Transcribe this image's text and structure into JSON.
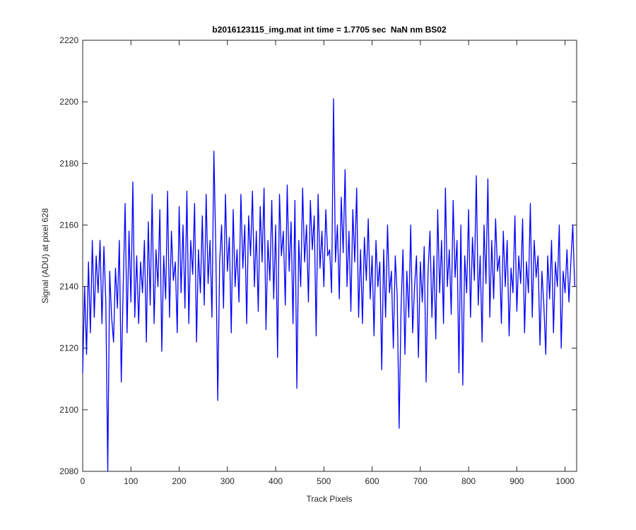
{
  "chart_data": {
    "type": "line",
    "title": "b2016123115_img.mat int time = 1.7705 sec  NaN nm BS02",
    "x_label": "Track Pixels",
    "y_label": "Signal (ADU) at pixel 628",
    "color": "#0000ff",
    "xlim": [
      0,
      1024
    ],
    "ylim": [
      2080,
      2220
    ],
    "xticks": [
      0,
      100,
      200,
      300,
      400,
      500,
      600,
      700,
      800,
      900,
      1000
    ],
    "yticks": [
      2080,
      2100,
      2120,
      2140,
      2160,
      2180,
      2200,
      2220
    ],
    "grid": false,
    "x": [
      0,
      4,
      8,
      12,
      16,
      20,
      24,
      28,
      32,
      36,
      40,
      44,
      48,
      52,
      56,
      60,
      64,
      68,
      72,
      76,
      80,
      84,
      88,
      92,
      96,
      100,
      104,
      108,
      112,
      116,
      120,
      124,
      128,
      132,
      136,
      140,
      144,
      148,
      152,
      156,
      160,
      164,
      168,
      172,
      176,
      180,
      184,
      188,
      192,
      196,
      200,
      204,
      208,
      212,
      216,
      220,
      224,
      228,
      232,
      236,
      240,
      244,
      248,
      252,
      256,
      260,
      264,
      268,
      272,
      276,
      280,
      284,
      288,
      292,
      296,
      300,
      304,
      308,
      312,
      316,
      320,
      324,
      328,
      332,
      336,
      340,
      344,
      348,
      352,
      356,
      360,
      364,
      368,
      372,
      376,
      380,
      384,
      388,
      392,
      396,
      400,
      404,
      408,
      412,
      416,
      420,
      424,
      428,
      432,
      436,
      440,
      444,
      448,
      452,
      456,
      460,
      464,
      468,
      472,
      476,
      480,
      484,
      488,
      492,
      496,
      500,
      504,
      508,
      512,
      516,
      520,
      524,
      528,
      532,
      536,
      540,
      544,
      548,
      552,
      556,
      560,
      564,
      568,
      572,
      576,
      580,
      584,
      588,
      592,
      596,
      600,
      604,
      608,
      612,
      616,
      620,
      624,
      628,
      632,
      636,
      640,
      644,
      648,
      652,
      656,
      660,
      664,
      668,
      672,
      676,
      680,
      684,
      688,
      692,
      696,
      700,
      704,
      708,
      712,
      716,
      720,
      724,
      728,
      732,
      736,
      740,
      744,
      748,
      752,
      756,
      760,
      764,
      768,
      772,
      776,
      780,
      784,
      788,
      792,
      796,
      800,
      804,
      808,
      812,
      816,
      820,
      824,
      828,
      832,
      836,
      840,
      844,
      848,
      852,
      856,
      860,
      864,
      868,
      872,
      876,
      880,
      884,
      888,
      892,
      896,
      900,
      904,
      908,
      912,
      916,
      920,
      924,
      928,
      932,
      936,
      940,
      944,
      948,
      952,
      956,
      960,
      964,
      968,
      972,
      976,
      980,
      984,
      988,
      992,
      996,
      1000,
      1004,
      1008,
      1012,
      1016,
      1020
    ],
    "values": [
      2112,
      2140,
      2118,
      2148,
      2125,
      2155,
      2130,
      2150,
      2138,
      2155,
      2128,
      2153,
      2135,
      2080,
      2145,
      2130,
      2122,
      2146,
      2133,
      2155,
      2109,
      2140,
      2167,
      2125,
      2158,
      2135,
      2174,
      2130,
      2150,
      2128,
      2148,
      2138,
      2155,
      2122,
      2161,
      2134,
      2170,
      2128,
      2152,
      2140,
      2165,
      2119,
      2150,
      2136,
      2171,
      2130,
      2158,
      2142,
      2148,
      2125,
      2166,
      2138,
      2160,
      2133,
      2171,
      2128,
      2155,
      2144,
      2167,
      2122,
      2152,
      2138,
      2163,
      2134,
      2170,
      2141,
      2155,
      2130,
      2184,
      2152,
      2103,
      2148,
      2160,
      2133,
      2170,
      2145,
      2156,
      2125,
      2165,
      2140,
      2152,
      2135,
      2170,
      2146,
      2160,
      2128,
      2163,
      2150,
      2171,
      2140,
      2158,
      2132,
      2166,
      2148,
      2172,
      2126,
      2155,
      2142,
      2168,
      2136,
      2160,
      2117,
      2170,
      2150,
      2158,
      2134,
      2173,
      2145,
      2161,
      2128,
      2168,
      2107,
      2155,
      2140,
      2172,
      2148,
      2160,
      2135,
      2168,
      2152,
      2163,
      2124,
      2170,
      2146,
      2158,
      2140,
      2165,
      2150,
      2152,
      2138,
      2201,
      2148,
      2160,
      2136,
      2169,
      2151,
      2178,
      2140,
      2158,
      2132,
      2165,
      2148,
      2172,
      2130,
      2152,
      2128,
      2156,
      2142,
      2162,
      2136,
      2150,
      2124,
      2155,
      2140,
      2148,
      2113,
      2152,
      2130,
      2160,
      2138,
      2145,
      2120,
      2150,
      2137,
      2094,
      2133,
      2152,
      2118,
      2145,
      2130,
      2160,
      2125,
      2140,
      2150,
      2117,
      2148,
      2135,
      2153,
      2109,
      2145,
      2158,
      2130,
      2150,
      2123,
      2165,
      2138,
      2155,
      2128,
      2172,
      2140,
      2152,
      2131,
      2168,
      2143,
      2155,
      2112,
      2160,
      2108,
      2150,
      2138,
      2165,
      2130,
      2156,
      2142,
      2176,
      2134,
      2150,
      2122,
      2160,
      2141,
      2175,
      2130,
      2155,
      2136,
      2162,
      2145,
      2150,
      2128,
      2158,
      2140,
      2155,
      2124,
      2146,
      2138,
      2163,
      2132,
      2150,
      2141,
      2162,
      2125,
      2148,
      2138,
      2167,
      2130,
      2155,
      2143,
      2150,
      2121,
      2145,
      2134,
      2118,
      2150,
      2136,
      2155,
      2125,
      2148,
      2140,
      2160,
      2120,
      2145,
      2138,
      2152,
      2135,
      2148,
      2160,
      2140
    ]
  }
}
